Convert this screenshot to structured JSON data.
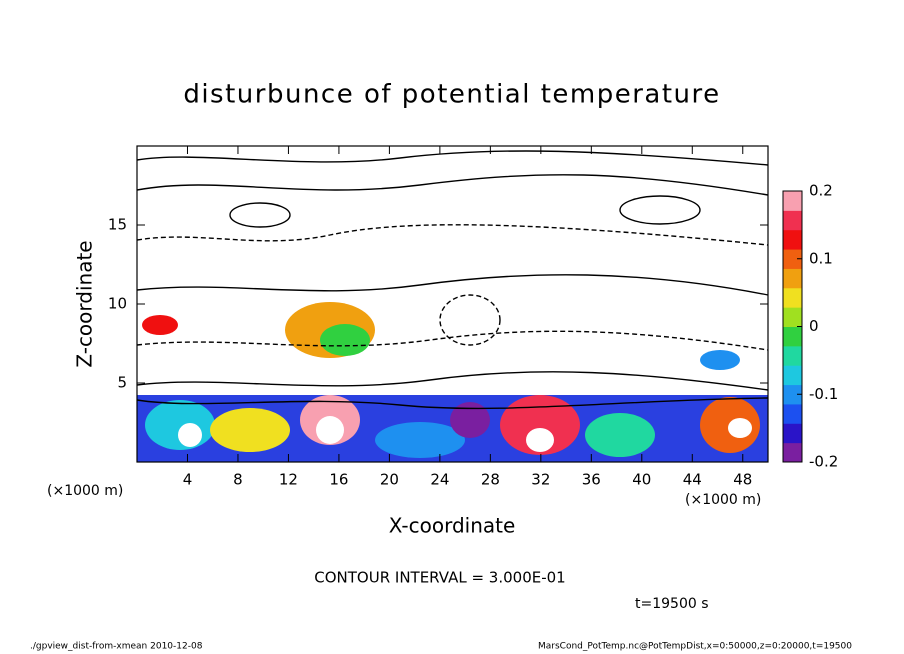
{
  "chart_data": {
    "type": "contour",
    "title": "disturbunce of potential temperature",
    "xlabel": "X-coordinate",
    "ylabel": "Z-coordinate",
    "xunit": "(×1000 m)",
    "yunit": "(×1000 m)",
    "xlim": [
      0,
      50
    ],
    "ylim": [
      0,
      20
    ],
    "xticks": [
      4,
      8,
      12,
      16,
      20,
      24,
      28,
      32,
      36,
      40,
      44,
      48
    ],
    "yticks": [
      5,
      10,
      15
    ],
    "colorbar": {
      "lim": [
        -0.2,
        0.2
      ],
      "ticks": [
        -0.2,
        -0.1,
        0,
        0.1,
        0.2
      ],
      "colors": [
        "#7a1fa0",
        "#2a14c8",
        "#1c50f0",
        "#1e90f0",
        "#1ec8e0",
        "#20d8a0",
        "#30d040",
        "#a0e020",
        "#f0e020",
        "#f0a010",
        "#f06010",
        "#f01010",
        "#f03050",
        "#f8a0b0"
      ]
    },
    "contour_interval": "CONTOUR INTERVAL = 3.000E-01",
    "time": "t=19500 s",
    "footer_left": "./gpview_dist-from-xmean  2010-12-08",
    "footer_right": "MarsCond_PotTemp.nc@PotTempDist,x=0:50000,z=0:20000,t=19500"
  }
}
